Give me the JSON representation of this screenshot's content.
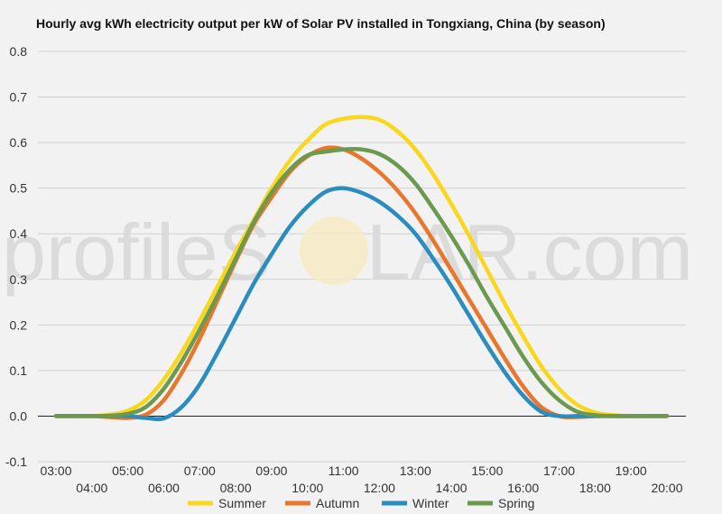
{
  "chart_data": {
    "type": "line",
    "title": "Hourly avg kWh electricity output per kW of Solar PV installed in Tongxiang, China (by season)",
    "xlabel": "",
    "ylabel": "",
    "ylim": [
      -0.1,
      0.8
    ],
    "yticks": [
      "-0.1",
      "0.0",
      "0.1",
      "0.2",
      "0.3",
      "0.4",
      "0.5",
      "0.6",
      "0.7",
      "0.8"
    ],
    "xticks": [
      "03:00",
      "04:00",
      "05:00",
      "06:00",
      "07:00",
      "08:00",
      "09:00",
      "10:00",
      "11:00",
      "12:00",
      "13:00",
      "14:00",
      "15:00",
      "16:00",
      "17:00",
      "18:00",
      "19:00",
      "20:00"
    ],
    "grid": true,
    "legend_position": "bottom",
    "series": [
      {
        "name": "Summer",
        "color": "#f9d71c",
        "x": [
          3,
          3.5,
          4,
          4.5,
          5,
          5.5,
          6,
          6.5,
          7,
          7.5,
          8,
          8.5,
          9,
          9.5,
          10,
          10.5,
          11,
          11.5,
          12,
          12.5,
          13,
          13.5,
          14,
          14.5,
          15,
          15.5,
          16,
          16.5,
          17,
          17.5,
          18,
          18.5,
          19,
          19.5,
          20
        ],
        "y": [
          0.0,
          0.0,
          0.0,
          0.003,
          0.012,
          0.035,
          0.08,
          0.14,
          0.21,
          0.285,
          0.36,
          0.43,
          0.5,
          0.56,
          0.605,
          0.64,
          0.652,
          0.656,
          0.65,
          0.625,
          0.585,
          0.53,
          0.465,
          0.395,
          0.32,
          0.245,
          0.175,
          0.11,
          0.06,
          0.025,
          0.008,
          0.002,
          0.0,
          0.0,
          0.0
        ]
      },
      {
        "name": "Autumn",
        "color": "#e8762c",
        "x": [
          3,
          3.5,
          4,
          4.5,
          5,
          5.5,
          6,
          6.5,
          7,
          7.5,
          8,
          8.5,
          9,
          9.5,
          10,
          10.5,
          11,
          11.5,
          12,
          12.5,
          13,
          13.5,
          14,
          14.5,
          15,
          15.5,
          16,
          16.5,
          17,
          17.5,
          18,
          18.5,
          19,
          19.5,
          20
        ],
        "y": [
          0.0,
          0.0,
          0.0,
          -0.002,
          -0.004,
          0.003,
          0.035,
          0.095,
          0.17,
          0.255,
          0.34,
          0.42,
          0.48,
          0.535,
          0.57,
          0.588,
          0.585,
          0.565,
          0.535,
          0.495,
          0.445,
          0.385,
          0.32,
          0.255,
          0.19,
          0.125,
          0.065,
          0.02,
          0.0,
          -0.002,
          0.0,
          0.0,
          0.0,
          0.0,
          0.0
        ]
      },
      {
        "name": "Winter",
        "color": "#2b8cbe",
        "x": [
          3,
          3.5,
          4,
          4.5,
          5,
          5.5,
          6,
          6.5,
          7,
          7.5,
          8,
          8.5,
          9,
          9.5,
          10,
          10.5,
          11,
          11.5,
          12,
          12.5,
          13,
          13.5,
          14,
          14.5,
          15,
          15.5,
          16,
          16.5,
          17,
          17.5,
          18,
          18.5,
          19,
          19.5,
          20
        ],
        "y": [
          0.0,
          0.0,
          0.0,
          0.0,
          0.0,
          -0.004,
          -0.005,
          0.02,
          0.07,
          0.14,
          0.215,
          0.29,
          0.355,
          0.415,
          0.46,
          0.492,
          0.5,
          0.49,
          0.47,
          0.44,
          0.4,
          0.345,
          0.285,
          0.22,
          0.155,
          0.095,
          0.045,
          0.01,
          0.0,
          0.0,
          0.0,
          0.0,
          0.0,
          0.0,
          0.0
        ]
      },
      {
        "name": "Spring",
        "color": "#6b9a4f",
        "x": [
          3,
          3.5,
          4,
          4.5,
          5,
          5.5,
          6,
          6.5,
          7,
          7.5,
          8,
          8.5,
          9,
          9.5,
          10,
          10.5,
          11,
          11.5,
          12,
          12.5,
          13,
          13.5,
          14,
          14.5,
          15,
          15.5,
          16,
          16.5,
          17,
          17.5,
          18,
          18.5,
          19,
          19.5,
          20
        ],
        "y": [
          0.0,
          0.0,
          0.0,
          0.001,
          0.005,
          0.02,
          0.06,
          0.12,
          0.19,
          0.265,
          0.345,
          0.425,
          0.49,
          0.54,
          0.572,
          0.58,
          0.585,
          0.585,
          0.575,
          0.55,
          0.51,
          0.455,
          0.395,
          0.33,
          0.26,
          0.195,
          0.13,
          0.075,
          0.035,
          0.01,
          0.002,
          0.0,
          0.0,
          0.0,
          0.0
        ]
      }
    ]
  },
  "watermark": {
    "text_left": "profileS",
    "text_right": "LAR.com"
  }
}
